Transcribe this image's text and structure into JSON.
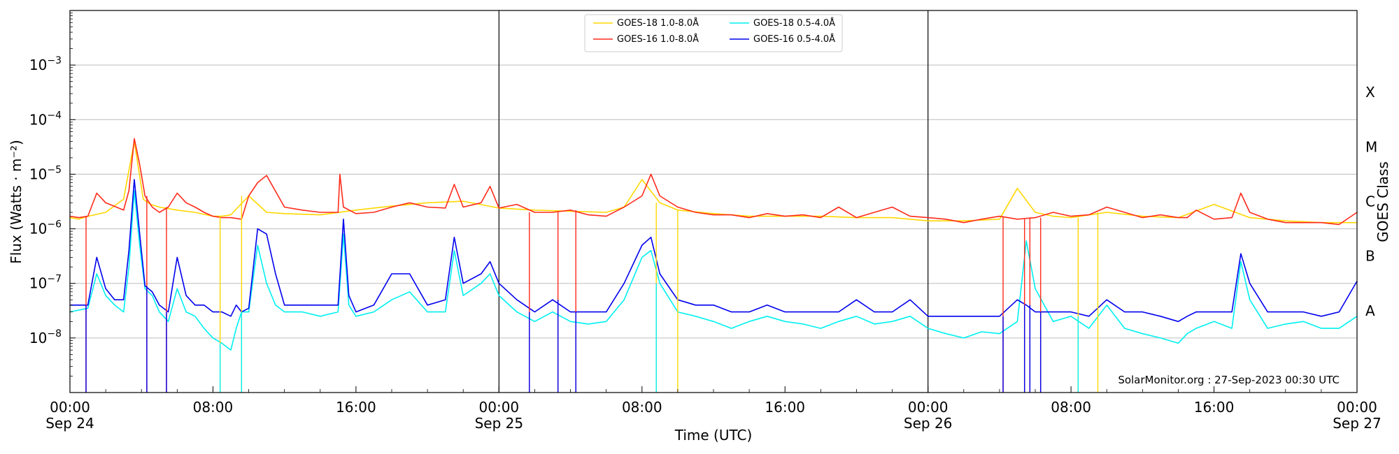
{
  "chart_data": {
    "type": "line",
    "xlabel": "Time (UTC)",
    "ylabel": "Flux (Watts · m⁻²)",
    "ylabel_right": "GOES Class",
    "credit": "SolarMonitor.org : 27-Sep-2023 00:30 UTC",
    "y_scale": "log",
    "ylim": [
      1e-09,
      0.01
    ],
    "xlim": [
      "2023-09-24 00:00",
      "2023-09-27 00:00"
    ],
    "grid": "horizontal",
    "legend_position": "top-center",
    "x_ticks": [
      {
        "h": 0,
        "l1": "00:00",
        "l2": "Sep 24"
      },
      {
        "h": 8,
        "l1": "08:00",
        "l2": ""
      },
      {
        "h": 16,
        "l1": "16:00",
        "l2": ""
      },
      {
        "h": 24,
        "l1": "00:00",
        "l2": "Sep 25"
      },
      {
        "h": 32,
        "l1": "08:00",
        "l2": ""
      },
      {
        "h": 40,
        "l1": "16:00",
        "l2": ""
      },
      {
        "h": 48,
        "l1": "00:00",
        "l2": "Sep 26"
      },
      {
        "h": 56,
        "l1": "08:00",
        "l2": ""
      },
      {
        "h": 64,
        "l1": "16:00",
        "l2": ""
      },
      {
        "h": 72,
        "l1": "00:00",
        "l2": "Sep 27"
      }
    ],
    "y_ticks": [
      {
        "exp": -8,
        "base": "10",
        "sup": "−8"
      },
      {
        "exp": -7,
        "base": "10",
        "sup": "−7"
      },
      {
        "exp": -6,
        "base": "10",
        "sup": "−6"
      },
      {
        "exp": -5,
        "base": "10",
        "sup": "−5"
      },
      {
        "exp": -4,
        "base": "10",
        "sup": "−4"
      },
      {
        "exp": -3,
        "base": "10",
        "sup": "−3"
      }
    ],
    "goes_classes": [
      {
        "label": "A",
        "exp": -7.5
      },
      {
        "label": "B",
        "exp": -6.5
      },
      {
        "label": "C",
        "exp": -5.5
      },
      {
        "label": "M",
        "exp": -4.5
      },
      {
        "label": "X",
        "exp": -3.5
      }
    ],
    "day_boundaries_hours": [
      24,
      48
    ],
    "series": [
      {
        "name": "GOES-18 1.0-8.0Å",
        "color": "#ffd700",
        "x_hours": [
          0,
          0.5,
          1,
          2,
          3,
          3.6,
          4.1,
          4.5,
          5,
          6,
          7,
          8,
          8.5,
          9,
          10,
          11,
          12,
          14,
          16,
          18,
          20,
          22,
          24,
          26,
          28,
          30,
          31,
          32,
          33,
          34,
          36,
          38,
          40,
          42,
          44,
          46,
          48,
          50,
          52,
          53,
          54,
          55,
          56,
          58,
          60,
          62,
          64,
          66,
          68,
          70,
          72
        ],
        "y": [
          1.6e-06,
          1.5e-06,
          1.7e-06,
          2e-06,
          3.5e-06,
          4e-05,
          3.5e-06,
          2.8e-06,
          2.5e-06,
          2.2e-06,
          2e-06,
          1.7e-06,
          1.7e-06,
          1.8e-06,
          4e-06,
          2e-06,
          1.9e-06,
          1.8e-06,
          2.2e-06,
          2.6e-06,
          3e-06,
          3.2e-06,
          2.4e-06,
          2.2e-06,
          2.1e-06,
          2e-06,
          2.5e-06,
          8e-06,
          3e-06,
          2.2e-06,
          1.9e-06,
          1.7e-06,
          1.7e-06,
          1.7e-06,
          1.6e-06,
          1.6e-06,
          1.4e-06,
          1.4e-06,
          1.5e-06,
          5.5e-06,
          2e-06,
          1.7e-06,
          1.6e-06,
          2e-06,
          1.7e-06,
          1.6e-06,
          2.8e-06,
          1.6e-06,
          1.4e-06,
          1.3e-06,
          1.3e-06
        ]
      },
      {
        "name": "GOES-16 1.0-8.0Å",
        "color": "#ff2a1a",
        "x_hours": [
          0,
          0.5,
          1,
          1.5,
          2,
          3,
          3.3,
          3.6,
          3.9,
          4.2,
          4.6,
          5,
          5.5,
          6,
          6.5,
          7,
          7.5,
          8,
          8.5,
          9,
          9.6,
          10,
          10.5,
          11,
          12,
          13,
          14,
          15,
          15.1,
          15.3,
          16,
          17,
          18,
          19,
          20,
          21,
          21.5,
          22,
          23,
          23.5,
          24,
          25,
          26,
          27,
          28,
          29,
          30,
          31,
          32,
          32.5,
          33,
          34,
          35,
          36,
          37,
          38,
          39,
          40,
          41,
          42,
          43,
          44,
          45,
          46,
          47,
          48,
          49,
          50,
          51,
          52,
          53,
          54,
          55,
          56,
          57,
          58,
          59,
          60,
          61,
          62,
          62.5,
          63,
          64,
          65,
          65.5,
          66,
          67,
          68,
          69,
          70,
          71,
          72
        ],
        "y": [
          1.7e-06,
          1.6e-06,
          1.7e-06,
          4.5e-06,
          3e-06,
          2.2e-06,
          5e-06,
          4.5e-05,
          1.5e-05,
          4e-06,
          2.5e-06,
          2e-06,
          2.5e-06,
          4.5e-06,
          3e-06,
          2.5e-06,
          2e-06,
          1.7e-06,
          1.6e-06,
          1.6e-06,
          1.5e-06,
          4e-06,
          7e-06,
          9.5e-06,
          2.5e-06,
          2.2e-06,
          2e-06,
          2e-06,
          1e-05,
          2.5e-06,
          1.9e-06,
          2e-06,
          2.5e-06,
          3e-06,
          2.5e-06,
          2.4e-06,
          6.5e-06,
          2.5e-06,
          3e-06,
          6e-06,
          2.4e-06,
          2.8e-06,
          2e-06,
          2e-06,
          2.2e-06,
          1.8e-06,
          1.7e-06,
          2.5e-06,
          4e-06,
          1e-05,
          4e-06,
          2.5e-06,
          2e-06,
          1.8e-06,
          1.8e-06,
          1.6e-06,
          1.9e-06,
          1.7e-06,
          1.8e-06,
          1.6e-06,
          2.5e-06,
          1.6e-06,
          2e-06,
          2.5e-06,
          1.7e-06,
          1.6e-06,
          1.5e-06,
          1.3e-06,
          1.5e-06,
          1.7e-06,
          1.5e-06,
          1.6e-06,
          2e-06,
          1.7e-06,
          1.8e-06,
          2.5e-06,
          2e-06,
          1.6e-06,
          1.8e-06,
          1.6e-06,
          1.6e-06,
          2.2e-06,
          1.5e-06,
          1.6e-06,
          4.5e-06,
          2e-06,
          1.5e-06,
          1.3e-06,
          1.3e-06,
          1.3e-06,
          1.2e-06,
          2e-06
        ]
      },
      {
        "name": "GOES-18 0.5-4.0Å",
        "color": "#00f0f0",
        "x_hours": [
          0,
          1,
          1.5,
          2,
          2.5,
          3,
          3.3,
          3.6,
          3.9,
          4.2,
          4.6,
          5,
          5.5,
          6,
          6.5,
          7,
          7.5,
          8,
          8.5,
          9,
          9.3,
          9.6,
          10,
          10.5,
          11,
          11.5,
          12,
          13,
          14,
          15,
          15.3,
          15.6,
          16,
          17,
          18,
          19,
          20,
          21,
          21.5,
          22,
          23,
          23.5,
          24,
          25,
          26,
          27,
          28,
          29,
          30,
          31,
          32,
          32.5,
          33,
          34,
          35,
          36,
          37,
          38,
          39,
          40,
          41,
          42,
          43,
          44,
          45,
          46,
          47,
          48,
          49,
          50,
          51,
          52,
          53,
          53.5,
          54,
          55,
          56,
          57,
          58,
          59,
          60,
          61,
          62,
          62.5,
          63,
          64,
          65,
          65.5,
          66,
          67,
          68,
          69,
          70,
          71,
          72
        ],
        "y": [
          3e-08,
          3.5e-08,
          1.5e-07,
          6e-08,
          4e-08,
          3e-08,
          2e-07,
          5e-06,
          5e-07,
          8e-08,
          6e-08,
          3e-08,
          2e-08,
          8e-08,
          3e-08,
          2.5e-08,
          1.5e-08,
          1e-08,
          8e-09,
          6e-09,
          1.5e-08,
          3e-08,
          3e-08,
          5e-07,
          1e-07,
          4e-08,
          3e-08,
          3e-08,
          2.5e-08,
          3e-08,
          8e-07,
          4e-08,
          2.5e-08,
          3e-08,
          5e-08,
          7e-08,
          3e-08,
          3e-08,
          4e-07,
          6e-08,
          1e-07,
          1.5e-07,
          6e-08,
          3e-08,
          2e-08,
          3e-08,
          2e-08,
          1.8e-08,
          2e-08,
          5e-08,
          3e-07,
          4e-07,
          1e-07,
          3e-08,
          2.5e-08,
          2e-08,
          1.5e-08,
          2e-08,
          2.5e-08,
          2e-08,
          1.8e-08,
          1.5e-08,
          2e-08,
          2.5e-08,
          1.8e-08,
          2e-08,
          2.5e-08,
          1.5e-08,
          1.2e-08,
          1e-08,
          1.3e-08,
          1.2e-08,
          2e-08,
          6e-07,
          8e-08,
          2e-08,
          2.5e-08,
          1.5e-08,
          4e-08,
          1.5e-08,
          1.2e-08,
          1e-08,
          8e-09,
          1.2e-08,
          1.5e-08,
          2e-08,
          1.5e-08,
          2.5e-07,
          5e-08,
          1.5e-08,
          1.8e-08,
          2e-08,
          1.5e-08,
          1.5e-08,
          2.5e-08
        ]
      },
      {
        "name": "GOES-16 0.5-4.0Å",
        "color": "#0000ee",
        "x_hours": [
          0,
          1,
          1.5,
          2,
          2.5,
          3,
          3.3,
          3.6,
          3.9,
          4.2,
          4.6,
          5,
          5.5,
          6,
          6.5,
          7,
          7.5,
          8,
          8.5,
          9,
          9.3,
          9.6,
          10,
          10.5,
          11,
          11.5,
          12,
          13,
          14,
          15,
          15.3,
          15.6,
          16,
          17,
          18,
          19,
          20,
          21,
          21.5,
          22,
          23,
          23.5,
          24,
          25,
          26,
          27,
          28,
          29,
          30,
          31,
          32,
          32.5,
          33,
          34,
          35,
          36,
          37,
          38,
          39,
          40,
          41,
          42,
          43,
          44,
          45,
          46,
          47,
          48,
          49,
          50,
          51,
          52,
          53,
          53.5,
          54,
          55,
          56,
          57,
          58,
          59,
          60,
          61,
          62,
          62.5,
          63,
          64,
          65,
          65.5,
          66,
          67,
          68,
          69,
          70,
          71,
          72
        ],
        "y": [
          4e-08,
          4e-08,
          3e-07,
          8e-08,
          5e-08,
          5e-08,
          4e-07,
          8e-06,
          8e-07,
          9e-08,
          7e-08,
          4e-08,
          3e-08,
          3e-07,
          6e-08,
          4e-08,
          4e-08,
          3e-08,
          3e-08,
          2.5e-08,
          4e-08,
          3e-08,
          3.5e-08,
          1e-06,
          8e-07,
          1.5e-07,
          4e-08,
          4e-08,
          4e-08,
          4e-08,
          1.5e-06,
          6e-08,
          3e-08,
          4e-08,
          1.5e-07,
          1.5e-07,
          4e-08,
          5e-08,
          7e-07,
          1e-07,
          1.5e-07,
          2.5e-07,
          1e-07,
          5e-08,
          3e-08,
          5e-08,
          3e-08,
          3e-08,
          3e-08,
          1e-07,
          5e-07,
          7e-07,
          1.5e-07,
          5e-08,
          4e-08,
          4e-08,
          3e-08,
          3e-08,
          4e-08,
          3e-08,
          3e-08,
          3e-08,
          3e-08,
          5e-08,
          3e-08,
          3e-08,
          5e-08,
          2.5e-08,
          2.5e-08,
          2.5e-08,
          2.5e-08,
          2.5e-08,
          5e-08,
          4e-08,
          3e-08,
          3e-08,
          3e-08,
          2.5e-08,
          5e-08,
          3e-08,
          3e-08,
          2.5e-08,
          2e-08,
          2.5e-08,
          3e-08,
          3e-08,
          3e-08,
          3.5e-07,
          1e-07,
          3e-08,
          3e-08,
          3e-08,
          2.5e-08,
          3e-08,
          1.1e-07
        ]
      }
    ],
    "dropouts": [
      {
        "x_hours": 0.9,
        "series": [
          "GOES-16 1.0-8.0Å",
          "GOES-16 0.5-4.0Å"
        ]
      },
      {
        "x_hours": 4.3,
        "series": [
          "GOES-16 1.0-8.0Å",
          "GOES-16 0.5-4.0Å"
        ]
      },
      {
        "x_hours": 5.4,
        "series": [
          "GOES-16 1.0-8.0Å",
          "GOES-16 0.5-4.0Å"
        ]
      },
      {
        "x_hours": 8.4,
        "series": [
          "GOES-18 1.0-8.0Å",
          "GOES-18 0.5-4.0Å"
        ]
      },
      {
        "x_hours": 9.6,
        "series": [
          "GOES-18 1.0-8.0Å",
          "GOES-18 0.5-4.0Å"
        ]
      },
      {
        "x_hours": 25.7,
        "series": [
          "GOES-16 1.0-8.0Å",
          "GOES-16 0.5-4.0Å"
        ]
      },
      {
        "x_hours": 27.3,
        "series": [
          "GOES-16 1.0-8.0Å",
          "GOES-16 0.5-4.0Å"
        ]
      },
      {
        "x_hours": 28.3,
        "series": [
          "GOES-16 1.0-8.0Å",
          "GOES-16 0.5-4.0Å"
        ]
      },
      {
        "x_hours": 32.8,
        "series": [
          "GOES-18 1.0-8.0Å",
          "GOES-18 0.5-4.0Å"
        ]
      },
      {
        "x_hours": 34.0,
        "series": [
          "GOES-18 1.0-8.0Å"
        ]
      },
      {
        "x_hours": 52.2,
        "series": [
          "GOES-16 1.0-8.0Å",
          "GOES-16 0.5-4.0Å"
        ]
      },
      {
        "x_hours": 53.4,
        "series": [
          "GOES-16 1.0-8.0Å",
          "GOES-16 0.5-4.0Å"
        ]
      },
      {
        "x_hours": 53.7,
        "series": [
          "GOES-16 1.0-8.0Å",
          "GOES-16 0.5-4.0Å"
        ]
      },
      {
        "x_hours": 54.3,
        "series": [
          "GOES-16 1.0-8.0Å",
          "GOES-16 0.5-4.0Å"
        ]
      },
      {
        "x_hours": 56.4,
        "series": [
          "GOES-18 1.0-8.0Å",
          "GOES-18 0.5-4.0Å"
        ]
      },
      {
        "x_hours": 57.5,
        "series": [
          "GOES-18 1.0-8.0Å"
        ]
      }
    ]
  }
}
